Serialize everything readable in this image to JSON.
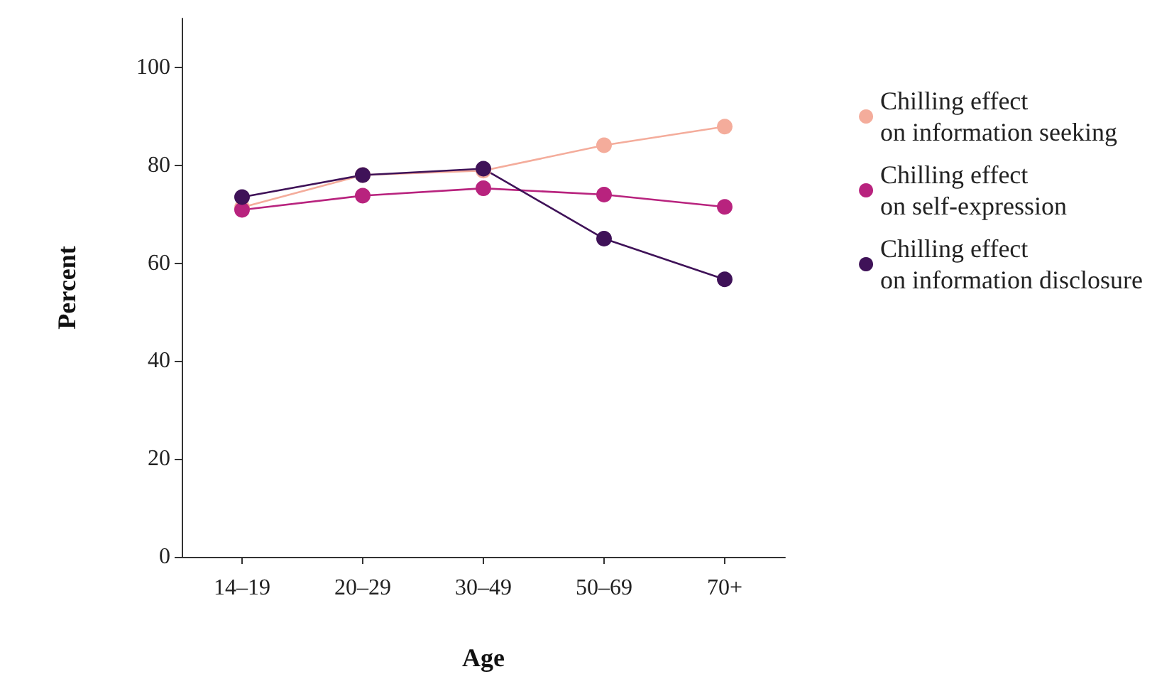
{
  "chart_data": {
    "type": "line",
    "xlabel": "Age",
    "ylabel": "Percent",
    "categories": [
      "14–19",
      "20–29",
      "30–49",
      "50–69",
      "70+"
    ],
    "series": [
      {
        "name": "Chilling effect\non information seeking",
        "color": "#f4ac9b",
        "values": [
          71.4,
          78,
          78.9,
          84.1,
          87.9
        ]
      },
      {
        "name": "Chilling effect\non self-expression",
        "color": "#b8237e",
        "values": [
          70.9,
          73.8,
          75.3,
          74,
          71.5
        ]
      },
      {
        "name": "Chilling effect\non information disclosure",
        "color": "#3f1258",
        "values": [
          73.5,
          78,
          79.3,
          65,
          56.7
        ]
      }
    ],
    "ylim": [
      0,
      110
    ],
    "yticks": [
      0,
      20,
      40,
      60,
      80,
      100
    ],
    "grid": false,
    "legend": "top right",
    "marker": "circle",
    "line_style": "solid"
  }
}
